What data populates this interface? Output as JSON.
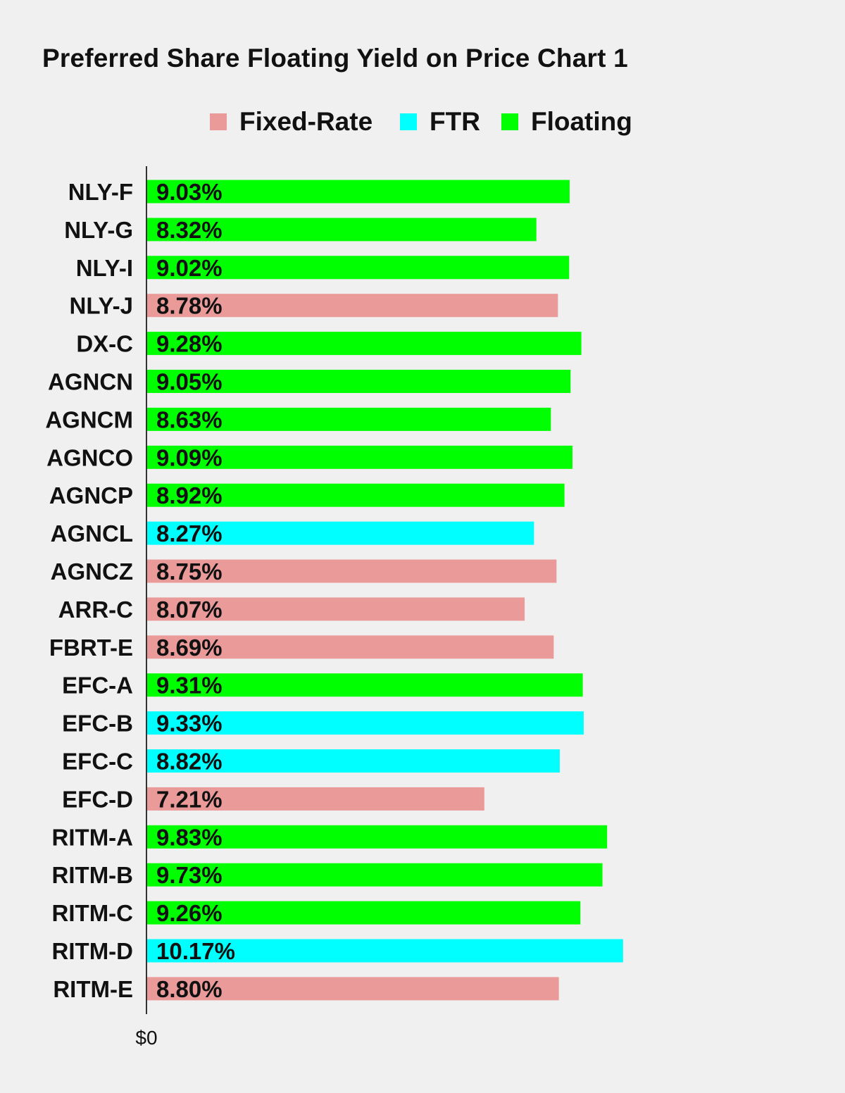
{
  "title": "Preferred Share Floating Yield on Price Chart 1",
  "colors": {
    "Fixed-Rate": "#ea9a99",
    "FTR": "#00ffff",
    "Floating": "#00ff00"
  },
  "legend": [
    {
      "label": "Fixed-Rate",
      "color": "#ea9a99"
    },
    {
      "label": "FTR",
      "color": "#00ffff"
    },
    {
      "label": "Floating",
      "color": "#00ff00"
    }
  ],
  "chart_data": {
    "type": "bar",
    "orientation": "horizontal",
    "title": "Preferred Share Floating Yield on Price Chart 1",
    "xlabel": "",
    "ylabel": "",
    "x_tick_labels": [
      "$0"
    ],
    "xlim": [
      0,
      11.25
    ],
    "legend_position": "top-center",
    "grid": false,
    "categories": [
      "NLY-F",
      "NLY-G",
      "NLY-I",
      "NLY-J",
      "DX-C",
      "AGNCN",
      "AGNCM",
      "AGNCO",
      "AGNCP",
      "AGNCL",
      "AGNCZ",
      "ARR-C",
      "FBRT-E",
      "EFC-A",
      "EFC-B",
      "EFC-C",
      "EFC-D",
      "RITM-A",
      "RITM-B",
      "RITM-C",
      "RITM-D",
      "RITM-E"
    ],
    "values": [
      9.03,
      8.32,
      9.02,
      8.78,
      9.28,
      9.05,
      8.63,
      9.09,
      8.92,
      8.27,
      8.75,
      8.07,
      8.69,
      9.31,
      9.33,
      8.82,
      7.21,
      9.83,
      9.73,
      9.26,
      10.17,
      8.8
    ],
    "value_labels": [
      "9.03%",
      "8.32%",
      "9.02%",
      "8.78%",
      "9.28%",
      "9.05%",
      "8.63%",
      "9.09%",
      "8.92%",
      "8.27%",
      "8.75%",
      "8.07%",
      "8.69%",
      "9.31%",
      "9.33%",
      "8.82%",
      "7.21%",
      "9.83%",
      "9.73%",
      "9.26%",
      "10.17%",
      "8.80%"
    ],
    "types": [
      "Floating",
      "Floating",
      "Floating",
      "Fixed-Rate",
      "Floating",
      "Floating",
      "Floating",
      "Floating",
      "Floating",
      "FTR",
      "Fixed-Rate",
      "Fixed-Rate",
      "Fixed-Rate",
      "Floating",
      "FTR",
      "FTR",
      "Fixed-Rate",
      "Floating",
      "Floating",
      "Floating",
      "FTR",
      "Fixed-Rate"
    ]
  }
}
